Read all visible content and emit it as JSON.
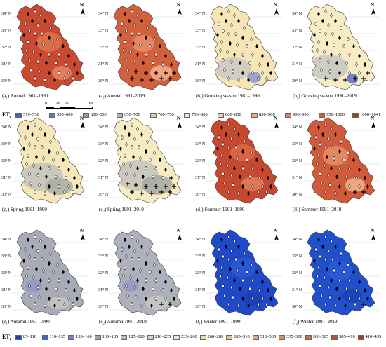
{
  "panels": [
    {
      "caption": "(a₁) Annual 1961–1990",
      "fill": "#c94a30",
      "blobs": [
        {
          "c": "#e0734e"
        },
        {
          "c": "#e7865f"
        }
      ],
      "marker": "diamond",
      "crossCount": 0
    },
    {
      "caption": "(a₂) Annual 1991–2019",
      "fill": "#d3603d",
      "blobs": [
        {
          "c": "#e88e68"
        },
        {
          "c": "#f2b28b"
        }
      ],
      "marker": "cross-diamond",
      "crossCount": 10
    },
    {
      "caption": "(b₁) Growing season 1961–1990",
      "fill": "#f6e6b6",
      "blobs": [
        {
          "c": "#c9c9c4"
        },
        {
          "c": "#8e98cf"
        }
      ],
      "marker": "diamond",
      "crossCount": 0
    },
    {
      "caption": "(b₂) Growing season 1991–2019",
      "fill": "#f7ecc4",
      "blobs": [
        {
          "c": "#c7c8c3"
        },
        {
          "c": "#5a6ec8"
        }
      ],
      "marker": "cross-diamond",
      "crossCount": 6
    },
    {
      "caption": "(c₁) Spring 1961–1990",
      "fill": "#f6e7b8",
      "blobs": [
        {
          "c": "#c2c2bc"
        },
        {
          "c": "#a9aaa6"
        }
      ],
      "marker": "diamond",
      "crossCount": 0
    },
    {
      "caption": "(c₂) Spring 1991–2019",
      "fill": "#f7ebc2",
      "blobs": [
        {
          "c": "#c3c3bd"
        },
        {
          "c": "#a7a8a3"
        }
      ],
      "marker": "cross-diamond",
      "crossCount": 12
    },
    {
      "caption": "(d₁) Summer 1961–1990",
      "fill": "#c8482f",
      "blobs": [
        {
          "c": "#db6a47"
        },
        {
          "c": "#e3805b"
        }
      ],
      "marker": "diamond",
      "crossCount": 0
    },
    {
      "caption": "(d₂) Summer 1991–2019",
      "fill": "#d05a3a",
      "blobs": [
        {
          "c": "#e7906b"
        },
        {
          "c": "#f0b592"
        }
      ],
      "marker": "cross-diamond",
      "crossCount": 2
    },
    {
      "caption": "(e₁) Autumn 1961–1990",
      "fill": "#a9acb8",
      "blobs": [
        {
          "c": "#8f98c6"
        },
        {
          "c": "#c5c6bf"
        }
      ],
      "marker": "diamond",
      "crossCount": 0
    },
    {
      "caption": "(e₂) Autumn 1991–2019",
      "fill": "#aeb1bb",
      "blobs": [
        {
          "c": "#939bc4"
        },
        {
          "c": "#c9cac3"
        }
      ],
      "marker": "cross-diamond",
      "crossCount": 2
    },
    {
      "caption": "(f₁) Winter 1961–1990",
      "fill": "#1f49c8",
      "blobs": [
        {
          "c": "#2a58d6"
        },
        {
          "c": "#1a3fb4"
        }
      ],
      "marker": "diamond",
      "crossCount": 0
    },
    {
      "caption": "(f₂) Winter 1991–2019",
      "fill": "#2150cc",
      "blobs": [
        {
          "c": "#2c5bd8"
        },
        {
          "c": "#1b41b6"
        }
      ],
      "marker": "cross-diamond",
      "crossCount": 1
    }
  ],
  "latLabels": [
    "34° N",
    "33° N",
    "32° N",
    "31° N",
    "30° N"
  ],
  "northLabel": "N",
  "scalebar": {
    "ticks": [
      "0",
      "40",
      "80",
      "160"
    ]
  },
  "legend1": {
    "title": "ET",
    "sub": "0",
    "items": [
      {
        "label": "519–550",
        "color": "#3a5fcf"
      },
      {
        "label": "550–600",
        "color": "#5f79cc"
      },
      {
        "label": "600–650",
        "color": "#8f98c6"
      },
      {
        "label": "650–700",
        "color": "#b3b4b8"
      },
      {
        "label": "700–750",
        "color": "#cfcfc6"
      },
      {
        "label": "750–800",
        "color": "#f3ecc6"
      },
      {
        "label": "800–850",
        "color": "#f4cf98"
      },
      {
        "label": "850–900",
        "color": "#efaa7d"
      },
      {
        "label": "900–950",
        "color": "#e5825c"
      },
      {
        "label": "950–1000",
        "color": "#d45a3c"
      },
      {
        "label": "1000–1041",
        "color": "#b7382a"
      }
    ]
  },
  "legend2": {
    "title": "ET",
    "sub": "0",
    "items": [
      {
        "label": "85–110",
        "color": "#1f3fbf"
      },
      {
        "label": "110–135",
        "color": "#3f62cc"
      },
      {
        "label": "135–160",
        "color": "#6f83c8"
      },
      {
        "label": "160–185",
        "color": "#9aa1c3"
      },
      {
        "label": "185–210",
        "color": "#b7b8bc"
      },
      {
        "label": "210–235",
        "color": "#d2d2c9"
      },
      {
        "label": "235–260",
        "color": "#f0ebc7"
      },
      {
        "label": "260–285",
        "color": "#f5d9a8"
      },
      {
        "label": "285–310",
        "color": "#f3c092"
      },
      {
        "label": "310–335",
        "color": "#eda47c"
      },
      {
        "label": "335–360",
        "color": "#e48867"
      },
      {
        "label": "360–385",
        "color": "#d86a4d"
      },
      {
        "label": "385–410",
        "color": "#c94c38"
      },
      {
        "label": "410–435",
        "color": "#b5352a"
      }
    ]
  }
}
